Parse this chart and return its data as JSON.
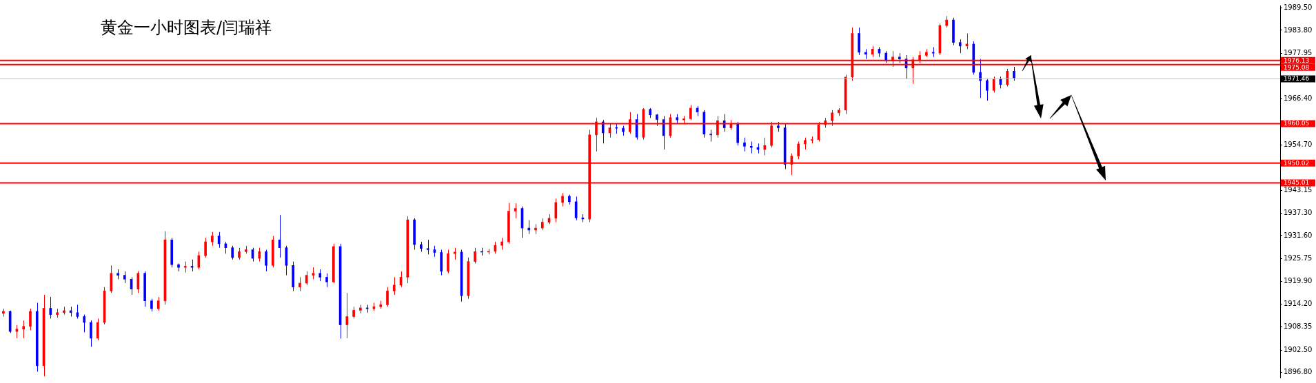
{
  "chart_data": {
    "type": "candlestick",
    "title": "黄金一小时图表/闫瑞祥",
    "categories": [
      null,
      null,
      null,
      null,
      null,
      null,
      null,
      null,
      null,
      null,
      null,
      null,
      null,
      null,
      null,
      null,
      null,
      null,
      null,
      null,
      null,
      null,
      null,
      null,
      null,
      null,
      null,
      null,
      null,
      null,
      null,
      null,
      null,
      null,
      null,
      null,
      null,
      null,
      null,
      null,
      null,
      null,
      null,
      null,
      null,
      null,
      null,
      null,
      null,
      null,
      null,
      null,
      null,
      null,
      null,
      null,
      null,
      null,
      null,
      null,
      null,
      null,
      null,
      null,
      null,
      null,
      null,
      null,
      null,
      null,
      null,
      null,
      null,
      null,
      null,
      null,
      null,
      null,
      null,
      null,
      null,
      null,
      null,
      null,
      null,
      null,
      null,
      null,
      null,
      null,
      null,
      null,
      null,
      null,
      null,
      null,
      null,
      null,
      null,
      null,
      null,
      null,
      null,
      null,
      null,
      null,
      null,
      null,
      null,
      null,
      null,
      null,
      null,
      null,
      null,
      null,
      null,
      null,
      null,
      null,
      null,
      null,
      null,
      null,
      null,
      null,
      null,
      null,
      null,
      null,
      null,
      null,
      null,
      null,
      null,
      null,
      null,
      null,
      null,
      null,
      null,
      null,
      null,
      null,
      null,
      null,
      null,
      null,
      null,
      null,
      null,
      null,
      null,
      null,
      null,
      null,
      null,
      null,
      null,
      null,
      null,
      null,
      null,
      null,
      null,
      null,
      null,
      null,
      null,
      null,
      null,
      null,
      null,
      null,
      null,
      null,
      null,
      null,
      null,
      null,
      null,
      null,
      null,
      null,
      null,
      null,
      null,
      null,
      null,
      null
    ],
    "ohlc": [
      [
        1911.8,
        1913,
        1911,
        1912.3
      ],
      [
        1912.3,
        1912.5,
        1906.8,
        1907.2
      ],
      [
        1907.2,
        1908.8,
        1905.5,
        1907.8
      ],
      [
        1907.8,
        1910,
        1905.5,
        1908.5
      ],
      [
        1908.5,
        1913,
        1907.5,
        1912.3
      ],
      [
        1912.3,
        1914.5,
        1897,
        1898.5
      ],
      [
        1898.5,
        1916.5,
        1895.8,
        1913.1
      ],
      [
        1913.1,
        1916,
        1910.5,
        1911.5
      ],
      [
        1911.5,
        1913,
        1910.7,
        1912
      ],
      [
        1912,
        1913.5,
        1911.5,
        1912.5
      ],
      [
        1912.5,
        1913.5,
        1911,
        1912
      ],
      [
        1912,
        1914,
        1910.5,
        1911
      ],
      [
        1911,
        1911.5,
        1907,
        1909.5
      ],
      [
        1909.5,
        1910,
        1903.3,
        1905.5
      ],
      [
        1905.5,
        1910.5,
        1905,
        1909.5
      ],
      [
        1909.5,
        1918.5,
        1909,
        1917.5
      ],
      [
        1917.5,
        1924,
        1917,
        1922
      ],
      [
        1922,
        1923,
        1920.5,
        1921.5
      ],
      [
        1921.5,
        1922.5,
        1919.5,
        1920.5
      ],
      [
        1920.5,
        1921,
        1916.5,
        1918
      ],
      [
        1918,
        1922.5,
        1917,
        1922
      ],
      [
        1922,
        1922.5,
        1913.5,
        1915
      ],
      [
        1915,
        1915.5,
        1912.3,
        1913
      ],
      [
        1913,
        1916,
        1912.5,
        1915
      ],
      [
        1915,
        1932.7,
        1914,
        1930.5
      ],
      [
        1930.5,
        1931,
        1923.5,
        1924.2
      ],
      [
        1924.2,
        1924.5,
        1922.5,
        1923.5
      ],
      [
        1923.5,
        1925,
        1922.2,
        1923.8
      ],
      [
        1923.8,
        1925.5,
        1922.5,
        1923.5
      ],
      [
        1923.5,
        1927.5,
        1923,
        1926.5
      ],
      [
        1926.5,
        1931,
        1926,
        1930
      ],
      [
        1930,
        1932.5,
        1929,
        1931.5
      ],
      [
        1931.5,
        1932.5,
        1928.5,
        1929.5
      ],
      [
        1929.5,
        1930,
        1927,
        1928.5
      ],
      [
        1928.5,
        1929,
        1925.5,
        1926
      ],
      [
        1926,
        1928.5,
        1925.5,
        1927.5
      ],
      [
        1927.5,
        1929,
        1927,
        1928
      ],
      [
        1928,
        1928.5,
        1925,
        1925.8
      ],
      [
        1925.8,
        1928.5,
        1925,
        1927.5
      ],
      [
        1927.5,
        1928,
        1922.5,
        1924
      ],
      [
        1924,
        1931.5,
        1923.5,
        1930.5
      ],
      [
        1930.5,
        1936.8,
        1926,
        1928.5
      ],
      [
        1928.5,
        1929,
        1921.5,
        1924
      ],
      [
        1924,
        1925,
        1917.5,
        1918.5
      ],
      [
        1918.5,
        1921,
        1917.5,
        1919.5
      ],
      [
        1919.5,
        1922.5,
        1919,
        1921.5
      ],
      [
        1921.5,
        1923.5,
        1920.5,
        1922
      ],
      [
        1922,
        1923,
        1920,
        1921
      ],
      [
        1921,
        1922,
        1918.5,
        1919.8
      ],
      [
        1919.8,
        1929.5,
        1919.5,
        1928.8
      ],
      [
        1928.8,
        1929.5,
        1905.4,
        1908.9
      ],
      [
        1908.9,
        1917,
        1905.5,
        1911
      ],
      [
        1911,
        1913.5,
        1910.5,
        1912.6
      ],
      [
        1912.6,
        1914,
        1911.8,
        1913.2
      ],
      [
        1913.2,
        1914,
        1912,
        1913
      ],
      [
        1913,
        1914.5,
        1912.5,
        1913.5
      ],
      [
        1913.5,
        1915,
        1913,
        1914
      ],
      [
        1914,
        1918.5,
        1913.5,
        1917.5
      ],
      [
        1917.5,
        1921,
        1916.5,
        1919
      ],
      [
        1919,
        1922.5,
        1918.5,
        1921
      ],
      [
        1921,
        1936.5,
        1919.5,
        1935.6
      ],
      [
        1935.6,
        1936,
        1928,
        1929.3
      ],
      [
        1929.3,
        1930,
        1927.5,
        1928.3
      ],
      [
        1928.3,
        1930.5,
        1926.8,
        1928
      ],
      [
        1928,
        1929,
        1926.2,
        1927.3
      ],
      [
        1927.3,
        1928,
        1921.5,
        1922.5
      ],
      [
        1922.5,
        1928,
        1922,
        1927
      ],
      [
        1927,
        1928.5,
        1925.5,
        1927.4
      ],
      [
        1927.4,
        1928,
        1914.8,
        1916.3
      ],
      [
        1916.3,
        1926,
        1915.5,
        1925
      ],
      [
        1925,
        1928.5,
        1924.5,
        1927.5
      ],
      [
        1927.5,
        1928.5,
        1926.5,
        1927.4
      ],
      [
        1927.4,
        1928.2,
        1926.8,
        1927.6
      ],
      [
        1927.6,
        1930,
        1927,
        1929.1
      ],
      [
        1929.1,
        1931,
        1928,
        1930
      ],
      [
        1930,
        1939.9,
        1929.5,
        1937.8
      ],
      [
        1937.8,
        1939.8,
        1936,
        1938.5
      ],
      [
        1938.5,
        1939,
        1931,
        1933.5
      ],
      [
        1933.5,
        1935.5,
        1932,
        1933
      ],
      [
        1933,
        1934.5,
        1932,
        1933.5
      ],
      [
        1933.5,
        1936,
        1933,
        1935
      ],
      [
        1935,
        1937,
        1934.5,
        1936
      ],
      [
        1936,
        1941,
        1935,
        1940
      ],
      [
        1940,
        1942.4,
        1939,
        1941.6
      ],
      [
        1941.6,
        1942,
        1939.5,
        1940.2
      ],
      [
        1940.2,
        1941.5,
        1935.5,
        1936.1
      ],
      [
        1936.1,
        1937,
        1935,
        1935.8
      ],
      [
        1935.8,
        1958.5,
        1935,
        1957.2
      ],
      [
        1957.2,
        1961.5,
        1953,
        1960.5
      ],
      [
        1960.5,
        1961,
        1955,
        1957.7
      ],
      [
        1957.7,
        1960,
        1956.5,
        1959
      ],
      [
        1959,
        1960,
        1957.5,
        1958.9
      ],
      [
        1958.9,
        1959.5,
        1957,
        1958
      ],
      [
        1958,
        1963,
        1957.5,
        1961.1
      ],
      [
        1961.1,
        1962.5,
        1956,
        1956.6
      ],
      [
        1956.6,
        1964,
        1956,
        1963.7
      ],
      [
        1963.7,
        1964,
        1961.5,
        1962.3
      ],
      [
        1962.3,
        1962.5,
        1959.5,
        1961.1
      ],
      [
        1961.1,
        1962,
        1953.5,
        1957
      ],
      [
        1957,
        1962.5,
        1956.5,
        1961.6
      ],
      [
        1961.6,
        1962.5,
        1960,
        1961
      ],
      [
        1961,
        1962,
        1960,
        1961.3
      ],
      [
        1961.3,
        1964.8,
        1961,
        1964
      ],
      [
        1964,
        1964.5,
        1962,
        1963
      ],
      [
        1963,
        1963.5,
        1956.5,
        1957.4
      ],
      [
        1957.4,
        1958.5,
        1955.5,
        1957.2
      ],
      [
        1957.2,
        1962,
        1956.5,
        1960.8
      ],
      [
        1960.8,
        1962.5,
        1958,
        1959
      ],
      [
        1959,
        1961,
        1958.5,
        1960
      ],
      [
        1960,
        1960.5,
        1954.5,
        1955.2
      ],
      [
        1955.2,
        1956.5,
        1953,
        1954.3
      ],
      [
        1954.3,
        1955.5,
        1952.5,
        1954
      ],
      [
        1954,
        1955,
        1952.5,
        1953.5
      ],
      [
        1953.5,
        1956.5,
        1952,
        1954.5
      ],
      [
        1954.5,
        1960.5,
        1954,
        1959.5
      ],
      [
        1959.5,
        1960.5,
        1958,
        1959
      ],
      [
        1959,
        1960,
        1948.5,
        1949.7
      ],
      [
        1949.7,
        1952.5,
        1947,
        1951.8
      ],
      [
        1951.8,
        1955.5,
        1951,
        1954.9
      ],
      [
        1954.9,
        1956.5,
        1953.5,
        1955.8
      ],
      [
        1955.8,
        1956.8,
        1955,
        1956
      ],
      [
        1956,
        1960.5,
        1955.5,
        1959.8
      ],
      [
        1959.8,
        1961.5,
        1959,
        1960.8
      ],
      [
        1960.8,
        1963.5,
        1959.5,
        1962.8
      ],
      [
        1962.8,
        1964,
        1962,
        1963.5
      ],
      [
        1963.5,
        1972.5,
        1962.5,
        1971.9
      ],
      [
        1971.9,
        1984.5,
        1971,
        1983
      ],
      [
        1983,
        1984.5,
        1977.5,
        1978.2
      ],
      [
        1978.2,
        1979,
        1976.5,
        1977.7
      ],
      [
        1977.7,
        1979.8,
        1977,
        1979
      ],
      [
        1979,
        1979.5,
        1977,
        1978
      ],
      [
        1978,
        1978.5,
        1975.5,
        1976
      ],
      [
        1976,
        1978.5,
        1974.5,
        1977
      ],
      [
        1977,
        1978,
        1975.5,
        1976.5
      ],
      [
        1976.5,
        1977.5,
        1971.5,
        1974.2
      ],
      [
        1974.2,
        1977,
        1970.2,
        1976.3
      ],
      [
        1976.3,
        1978.5,
        1975.5,
        1977.4
      ],
      [
        1977.4,
        1979,
        1977,
        1978.2
      ],
      [
        1978.2,
        1979.5,
        1977,
        1978
      ],
      [
        1978,
        1985.5,
        1977.5,
        1985
      ],
      [
        1985,
        1987.4,
        1984.5,
        1986.4
      ],
      [
        1986.4,
        1987,
        1980,
        1980.7
      ],
      [
        1980.7,
        1981.5,
        1978,
        1979.8
      ],
      [
        1979.8,
        1983,
        1979,
        1980.3
      ],
      [
        1980.3,
        1981,
        1972.5,
        1973.1
      ],
      [
        1973.1,
        1976.5,
        1966.6,
        1971
      ],
      [
        1971,
        1971.5,
        1965.9,
        1968.5
      ],
      [
        1968.5,
        1972,
        1968,
        1971.4
      ],
      [
        1971.4,
        1972,
        1969,
        1970
      ],
      [
        1970,
        1974,
        1969.5,
        1973.4
      ],
      [
        1973.4,
        1974.5,
        1971,
        1971.7
      ],
      null,
      null,
      null,
      null,
      null,
      null,
      null,
      null,
      null,
      null,
      null,
      null,
      null,
      null,
      null,
      null,
      null,
      null,
      null,
      null,
      null,
      null,
      null,
      null,
      null,
      null,
      null,
      null,
      null,
      null,
      null,
      null,
      null,
      null,
      null,
      null,
      null,
      null,
      null
    ],
    "colors": [
      "#ff0000",
      "#0000ff",
      "#ff0000",
      "#ff0000",
      "#ff0000",
      "#0000ff",
      "#ff0000",
      "#0000ff",
      "#ff0000",
      "#ff0000",
      "#0000ff",
      "#0000ff",
      "#0000ff",
      "#0000ff",
      "#ff0000",
      "#ff0000",
      "#ff0000",
      "#0000ff",
      "#0000ff",
      "#0000ff",
      "#ff0000",
      "#0000ff",
      "#0000ff",
      "#ff0000",
      "#ff0000",
      "#0000ff",
      "#0000ff",
      "#ff0000",
      "#0000ff",
      "#ff0000",
      "#ff0000",
      "#ff0000",
      "#0000ff",
      "#0000ff",
      "#0000ff",
      "#ff0000",
      "#ff0000",
      "#0000ff",
      "#ff0000",
      "#0000ff",
      "#ff0000",
      "#0000ff",
      "#0000ff",
      "#0000ff",
      "#ff0000",
      "#ff0000",
      "#ff0000",
      "#0000ff",
      "#0000ff",
      "#ff0000",
      "#0000ff",
      "#ff0000",
      "#ff0000",
      "#ff0000",
      "#0000ff",
      "#ff0000",
      "#ff0000",
      "#ff0000",
      "#ff0000",
      "#ff0000",
      "#ff0000",
      "#0000ff",
      "#0000ff",
      "#0000ff",
      "#0000ff",
      "#0000ff",
      "#ff0000",
      "#ff0000",
      "#0000ff",
      "#ff0000",
      "#ff0000",
      "#0000ff",
      "#ff0000",
      "#ff0000",
      "#ff0000",
      "#ff0000",
      "#ff0000",
      "#0000ff",
      "#0000ff",
      "#ff0000",
      "#ff0000",
      "#ff0000",
      "#ff0000",
      "#ff0000",
      "#0000ff",
      "#0000ff",
      "#0000ff",
      "#ff0000",
      "#ff0000",
      "#0000ff",
      "#ff0000",
      "#0000ff",
      "#0000ff",
      "#ff0000",
      "#0000ff",
      "#ff0000",
      "#0000ff",
      "#0000ff",
      "#0000ff",
      "#ff0000",
      "#0000ff",
      "#ff0000",
      "#ff0000",
      "#0000ff",
      "#0000ff",
      "#0000ff",
      "#ff0000",
      "#0000ff",
      "#ff0000",
      "#0000ff",
      "#0000ff",
      "#0000ff",
      "#0000ff",
      "#ff0000",
      "#ff0000",
      "#0000ff",
      "#0000ff",
      "#ff0000",
      "#ff0000",
      "#ff0000",
      "#ff0000",
      "#ff0000",
      "#ff0000",
      "#ff0000",
      "#ff0000",
      "#ff0000",
      "#ff0000",
      "#0000ff",
      "#0000ff",
      "#ff0000",
      "#0000ff",
      "#0000ff",
      "#ff0000",
      "#0000ff",
      "#0000ff",
      "#ff0000",
      "#ff0000",
      "#ff0000",
      "#0000ff",
      "#ff0000",
      "#ff0000",
      "#0000ff",
      "#0000ff",
      "#ff0000",
      "#0000ff",
      "#0000ff",
      "#0000ff",
      "#ff0000",
      "#0000ff",
      "#ff0000",
      "#0000ff",
      null,
      null,
      null,
      null,
      null,
      null,
      null,
      null,
      null,
      null,
      null,
      null,
      null,
      null,
      null,
      null,
      null,
      null,
      null,
      null,
      null,
      null,
      null,
      null,
      null,
      null,
      null,
      null,
      null,
      null,
      null,
      null,
      null,
      null,
      null,
      null,
      null,
      null,
      null
    ],
    "ylim": [
      1895.5,
      1990.1
    ],
    "yticks": [
      {
        "value": 1896.8,
        "label": "1896.80"
      },
      {
        "value": 1902.5,
        "label": "1902.50"
      },
      {
        "value": 1908.35,
        "label": "1908.35"
      },
      {
        "value": 1914.2,
        "label": "1914.20"
      },
      {
        "value": 1919.9,
        "label": "1919.90"
      },
      {
        "value": 1925.75,
        "label": "1925.75"
      },
      {
        "value": 1931.6,
        "label": "1931.60"
      },
      {
        "value": 1937.3,
        "label": "1937.30"
      },
      {
        "value": 1943.15,
        "label": "1943.15"
      },
      {
        "value": 1954.7,
        "label": "1954.70"
      },
      {
        "value": 1966.4,
        "label": "1966.40"
      },
      {
        "value": 1977.95,
        "label": "1977.95"
      },
      {
        "value": 1983.8,
        "label": "1983.80"
      },
      {
        "value": 1989.5,
        "label": "1989.50"
      }
    ],
    "ref_lines": [
      {
        "axis": "y",
        "value": 1976.13,
        "label": "1976.13",
        "color": "#ff0000"
      },
      {
        "axis": "y",
        "value": 1975.08,
        "label": "1975.08",
        "color": "#ff0000"
      },
      {
        "axis": "y",
        "value": 1971.46,
        "label": "1971.46",
        "color": "#c0c0c0"
      },
      {
        "axis": "y",
        "value": 1960.05,
        "label": "1960.05",
        "color": "#ff0000"
      },
      {
        "axis": "y",
        "value": 1950.02,
        "label": "1950.02",
        "color": "#ff0000"
      },
      {
        "axis": "y",
        "value": 1945.01,
        "label": "1945.01",
        "color": "#ff0000"
      }
    ],
    "tick_labels": "y"
  }
}
